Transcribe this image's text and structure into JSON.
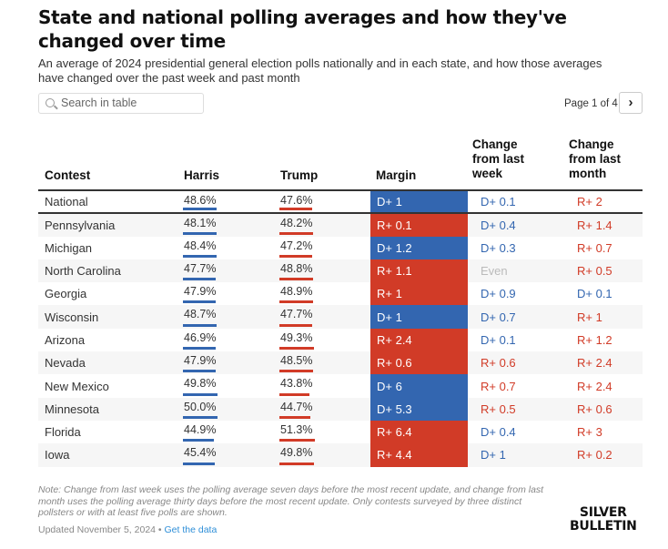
{
  "title": "State and national polling averages and how they've changed over time",
  "subtitle": "An average of 2024 presidential general election polls nationally and in each state, and how those averages have changed over the past week and past month",
  "search_placeholder": "Search in table",
  "pager": "Page 1 of 4",
  "next_label": "›",
  "colors": {
    "dem": "#3366b0",
    "rep": "#d13b27"
  },
  "chart_data": {
    "type": "table",
    "columns": [
      "Contest",
      "Harris",
      "Trump",
      "Margin",
      "Change from last week",
      "Change from last month"
    ],
    "rows": [
      [
        "National",
        "48.6%",
        "47.6%",
        "D+ 1",
        "D+ 0.1",
        "R+ 2"
      ],
      [
        "Pennsylvania",
        "48.1%",
        "48.2%",
        "R+ 0.1",
        "D+ 0.4",
        "R+ 1.4"
      ],
      [
        "Michigan",
        "48.4%",
        "47.2%",
        "D+ 1.2",
        "D+ 0.3",
        "R+ 0.7"
      ],
      [
        "North Carolina",
        "47.7%",
        "48.8%",
        "R+ 1.1",
        "Even",
        "R+ 0.5"
      ],
      [
        "Georgia",
        "47.9%",
        "48.9%",
        "R+ 1",
        "D+ 0.9",
        "D+ 0.1"
      ],
      [
        "Wisconsin",
        "48.7%",
        "47.7%",
        "D+ 1",
        "D+ 0.7",
        "R+ 1"
      ],
      [
        "Arizona",
        "46.9%",
        "49.3%",
        "R+ 2.4",
        "D+ 0.1",
        "R+ 1.2"
      ],
      [
        "Nevada",
        "47.9%",
        "48.5%",
        "R+ 0.6",
        "R+ 0.6",
        "R+ 2.4"
      ],
      [
        "New Mexico",
        "49.8%",
        "43.8%",
        "D+ 6",
        "R+ 0.7",
        "R+ 2.4"
      ],
      [
        "Minnesota",
        "50.0%",
        "44.7%",
        "D+ 5.3",
        "R+ 0.5",
        "R+ 0.6"
      ],
      [
        "Florida",
        "44.9%",
        "51.3%",
        "R+ 6.4",
        "D+ 0.4",
        "R+ 3"
      ],
      [
        "Iowa",
        "45.4%",
        "49.8%",
        "R+ 4.4",
        "D+ 1",
        "R+ 0.2"
      ]
    ]
  },
  "note": "Note: Change from last week uses the polling average seven days before the most recent update, and change from last month uses the polling average thirty days before the most recent update. Only contests surveyed by three distinct pollsters or with at least five polls are shown.",
  "updated": "Updated November 5, 2024 •",
  "get_data": "Get the data",
  "logo": "SILVER BULLETIN"
}
